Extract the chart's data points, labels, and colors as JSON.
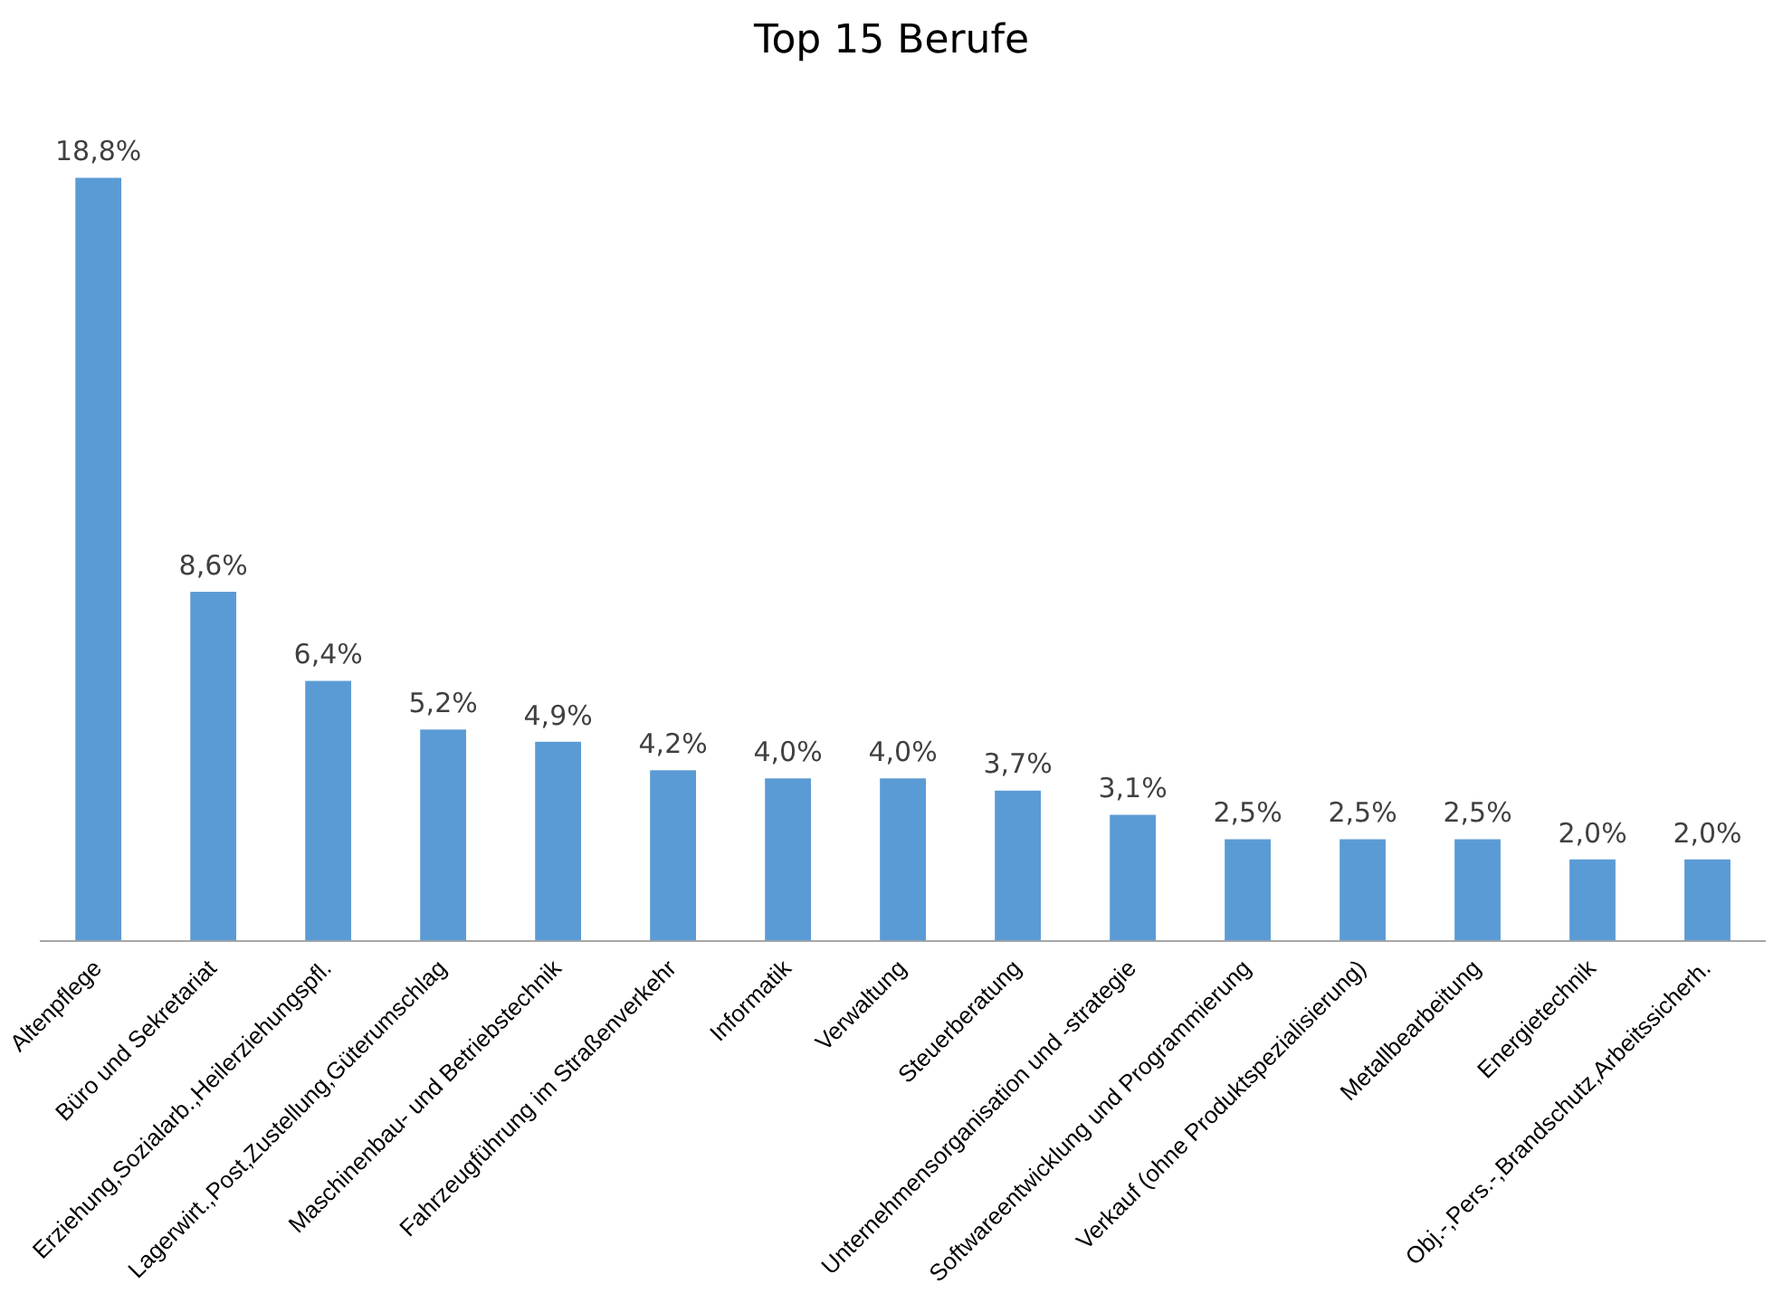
{
  "chart_data": {
    "type": "bar",
    "title": "Top 15 Berufe",
    "categories": [
      "Altenpflege",
      "Büro und Sekretariat",
      "Erziehung,Sozialarb.,Heilerziehungspfl.",
      "Lagerwirt.,Post,Zustellung,Güterumschlag",
      "Maschinenbau- und Betriebstechnik",
      "Fahrzeugführung im Straßenverkehr",
      "Informatik",
      "Verwaltung",
      "Steuerberatung",
      "Unternehmensorganisation und -strategie",
      "Softwareentwicklung und Programmierung",
      "Verkauf (ohne Produktspezialisierung)",
      "Metallbearbeitung",
      "Energietechnik",
      "Obj.-,Pers.-,Brandschutz,Arbeitssicherh."
    ],
    "values": [
      18.8,
      8.6,
      6.4,
      5.2,
      4.9,
      4.2,
      4.0,
      4.0,
      3.7,
      3.1,
      2.5,
      2.5,
      2.5,
      2.0,
      2.0
    ],
    "value_labels": [
      "18,8%",
      "8,6%",
      "6,4%",
      "5,2%",
      "4,9%",
      "4,2%",
      "4,0%",
      "4,0%",
      "3,7%",
      "3,1%",
      "2,5%",
      "2,5%",
      "2,5%",
      "2,0%",
      "2,0%"
    ],
    "color": "#5b9bd5",
    "grid": false,
    "legend": false
  }
}
